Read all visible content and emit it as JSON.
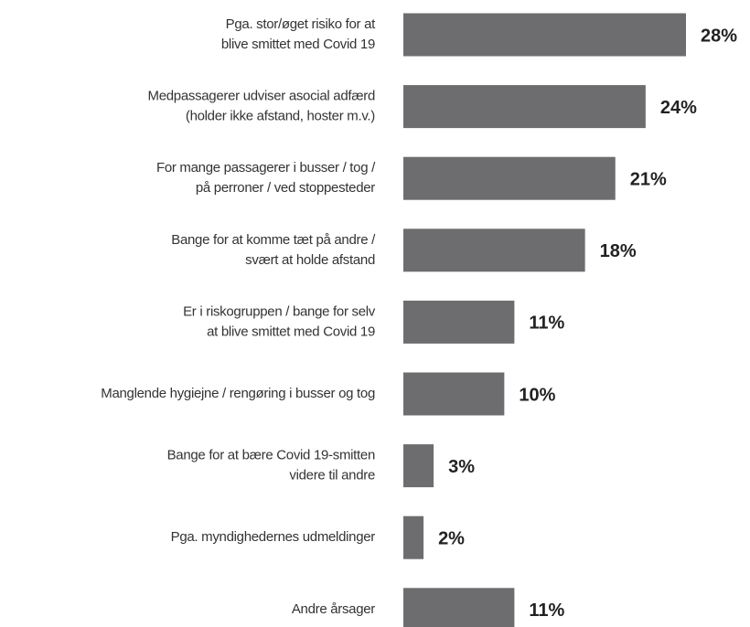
{
  "chart_data": {
    "type": "bar",
    "orientation": "horizontal",
    "color": "#6d6d6f",
    "categories": [
      [
        "Pga. stor/øget risiko for at",
        "blive smittet med Covid 19"
      ],
      [
        "Medpassagerer udviser asocial adfærd",
        "(holder ikke afstand, hoster m.v.)"
      ],
      [
        "For mange passagerer i busser / tog /",
        "på perroner / ved stoppesteder"
      ],
      [
        "Bange for at komme tæt på andre /",
        "svært at holde afstand"
      ],
      [
        "Er i riskogruppen / bange for selv",
        "at blive smittet med Covid 19"
      ],
      [
        "Manglende hygiejne / rengøring i busser og tog"
      ],
      [
        "Bange for at bære Covid 19-smitten",
        "videre til andre"
      ],
      [
        "Pga. myndighedernes udmeldinger"
      ],
      [
        "Andre årsager"
      ]
    ],
    "values": [
      28,
      24,
      21,
      18,
      11,
      10,
      3,
      2,
      11
    ],
    "value_labels": [
      "28%",
      "24%",
      "21%",
      "18%",
      "11%",
      "10%",
      "3%",
      "2%",
      "11%"
    ]
  }
}
